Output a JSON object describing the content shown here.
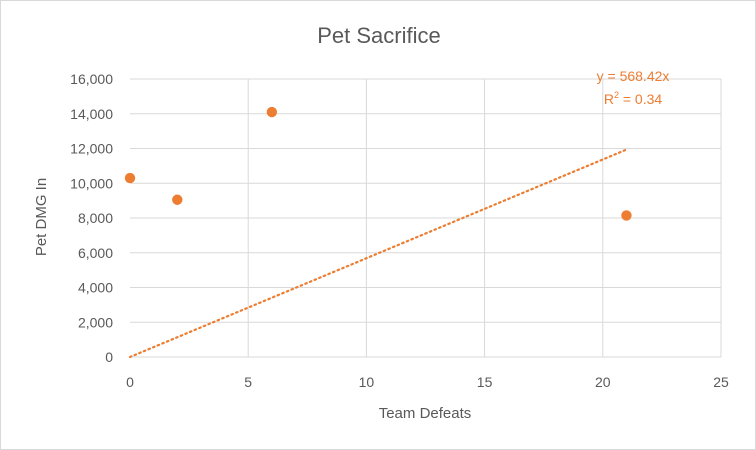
{
  "chart_data": {
    "type": "scatter",
    "title": "Pet Sacrifice",
    "xlabel": "Team Defeats",
    "ylabel": "Pet DMG In",
    "xlim": [
      0,
      25
    ],
    "ylim": [
      0,
      16000
    ],
    "x_ticks": [
      "0",
      "5",
      "10",
      "15",
      "20",
      "25"
    ],
    "y_ticks": [
      "0",
      "2,000",
      "4,000",
      "6,000",
      "8,000",
      "10,000",
      "12,000",
      "14,000",
      "16,000"
    ],
    "grid": true,
    "legend": "none",
    "series": [
      {
        "points": [
          {
            "x": 0,
            "y": 10300
          },
          {
            "x": 2,
            "y": 9050
          },
          {
            "x": 6,
            "y": 14100
          },
          {
            "x": 21,
            "y": 8150
          }
        ],
        "color": "#ed7d31"
      }
    ],
    "trendline": {
      "type": "linear",
      "slope": 568.42,
      "intercept": 0,
      "x_range": [
        0,
        21
      ],
      "style": "dotted",
      "color": "#ed7d31",
      "equation_label": "y = 568.42x",
      "r2_base": "R",
      "r2_sup": "2",
      "r2_rest": " = 0.34"
    }
  }
}
